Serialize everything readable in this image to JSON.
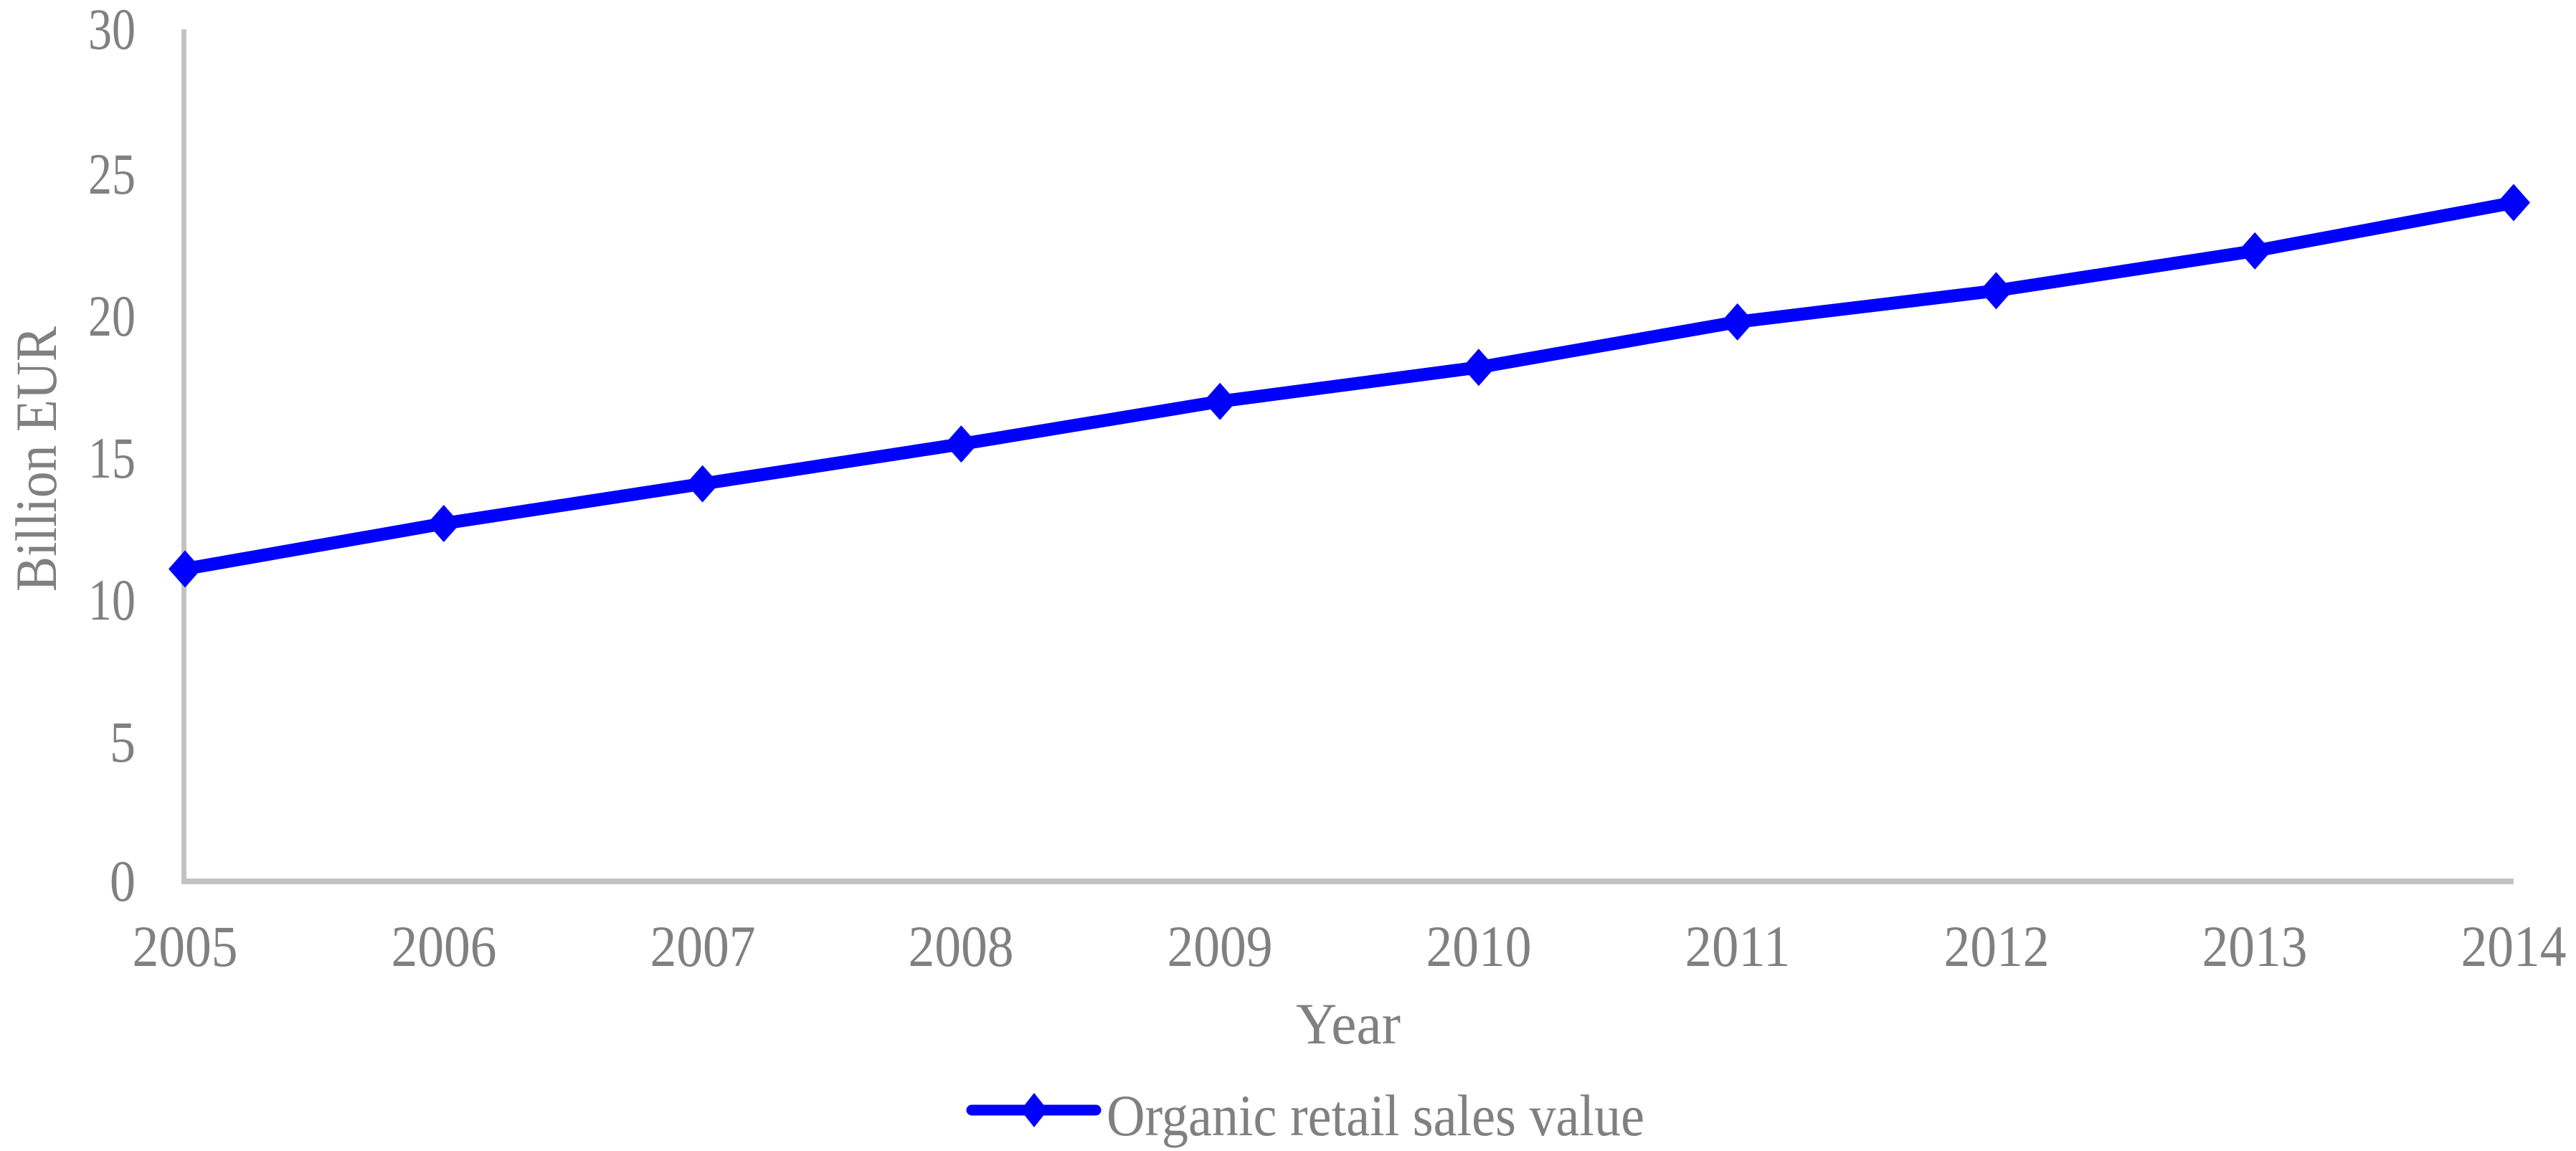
{
  "chart_data": {
    "type": "line",
    "title": "",
    "categories": [
      "2005",
      "2006",
      "2007",
      "2008",
      "2009",
      "2010",
      "2011",
      "2012",
      "2013",
      "2014"
    ],
    "series": [
      {
        "name": "Organic retail sales value",
        "values": [
          11.0,
          12.6,
          14.0,
          15.4,
          16.9,
          18.1,
          19.7,
          20.8,
          22.2,
          23.9
        ]
      }
    ],
    "xlabel": "Year",
    "ylabel": "Billion EUR",
    "ylim": [
      0,
      30
    ],
    "yticks": [
      0,
      5,
      10,
      15,
      20,
      25,
      30
    ],
    "ytick_labels": [
      "0",
      "5",
      "10",
      "15",
      "20",
      "25",
      "30"
    ],
    "grid": false,
    "legend_position": "bottom-center",
    "marker": "diamond"
  },
  "legend": {
    "label": "Organic retail sales value"
  },
  "colors": {
    "line": "#0000FF",
    "text_gray": "#808080",
    "axis_gray": "#C2C2C2",
    "background": "#FFFFFF"
  }
}
